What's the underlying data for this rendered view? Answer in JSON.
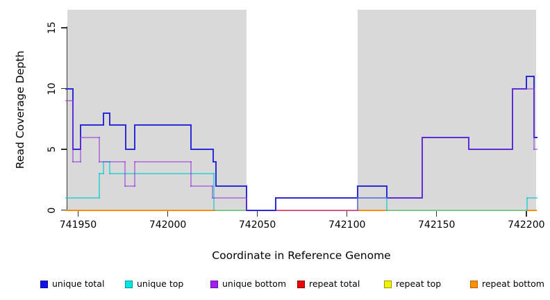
{
  "figure": {
    "xlabel": "Coordinate in Reference Genome",
    "ylabel": "Read Coverage Depth"
  },
  "legend": {
    "items": [
      {
        "label": "unique total",
        "fill": "#1111ee",
        "border": "#0b0b99"
      },
      {
        "label": "unique top",
        "fill": "#00e5e5",
        "border": "#009999"
      },
      {
        "label": "unique bottom",
        "fill": "#a020f0",
        "border": "#6a0dad"
      },
      {
        "label": "repeat total",
        "fill": "#ee0000",
        "border": "#8b0000"
      },
      {
        "label": "repeat top",
        "fill": "#f2f200",
        "border": "#999900"
      },
      {
        "label": "repeat bottom",
        "fill": "#ff9100",
        "border": "#b36200"
      }
    ]
  },
  "chart_data": {
    "type": "line",
    "step": true,
    "title": "",
    "xlabel": "Coordinate in Reference Genome",
    "ylabel": "Read Coverage Depth",
    "xlim": [
      741944,
      742205.5
    ],
    "ylim": [
      0,
      16.5
    ],
    "xticks": [
      741950,
      742000,
      742050,
      742100,
      742150,
      742200
    ],
    "yticks": [
      0,
      5,
      10,
      15
    ],
    "grid": false,
    "legend_position": "bottom",
    "plot_bg": "#d9d9d9",
    "uncovered_region": {
      "from": 742044,
      "to": 742106,
      "color": "#ffffff"
    },
    "axis_color": "#303030",
    "series": [
      {
        "name": "unique total",
        "color": "#2a2ad8",
        "end": 742205.7,
        "steps": [
          [
            741943.3,
            10
          ],
          [
            741947,
            5
          ],
          [
            741951.5,
            7
          ],
          [
            741964,
            8
          ],
          [
            741967.6,
            7
          ],
          [
            741976.7,
            5
          ],
          [
            741981.5,
            7
          ],
          [
            742012.8,
            5
          ],
          [
            742025.5,
            4
          ],
          [
            742026.8,
            2
          ],
          [
            742044,
            0
          ],
          [
            742060.2,
            1
          ],
          [
            742106,
            2
          ],
          [
            742122.3,
            1
          ],
          [
            742142,
            6
          ],
          [
            742168,
            5
          ],
          [
            742192.2,
            10
          ],
          [
            742200.1,
            11
          ],
          [
            742204.3,
            6
          ]
        ]
      },
      {
        "name": "unique top",
        "color": "rgba(0,205,205,0.6)",
        "end": 742205.7,
        "steps": [
          [
            741943.3,
            1
          ],
          [
            741961.9,
            3
          ],
          [
            741964,
            4
          ],
          [
            741967.6,
            3
          ],
          [
            742025.9,
            0
          ],
          [
            742106,
            1
          ],
          [
            742122.3,
            0
          ],
          [
            742200.5,
            1
          ]
        ]
      },
      {
        "name": "unique bottom",
        "color": "rgba(140,45,215,0.5)",
        "end": 742205.7,
        "steps": [
          [
            741943.3,
            9
          ],
          [
            741947,
            4
          ],
          [
            741951.5,
            6
          ],
          [
            741961.9,
            4
          ],
          [
            741976.3,
            2
          ],
          [
            741981.5,
            4
          ],
          [
            742012.8,
            2
          ],
          [
            742024.8,
            1
          ],
          [
            742044,
            0
          ],
          [
            742106,
            1
          ],
          [
            742142,
            6
          ],
          [
            742168,
            5
          ],
          [
            742192.2,
            10
          ],
          [
            742204.3,
            5
          ]
        ]
      },
      {
        "name": "repeat total",
        "color": "#e00000",
        "end": 742205.7,
        "steps": [
          [
            741943.3,
            0
          ]
        ]
      },
      {
        "name": "repeat top",
        "color": "#f0f000",
        "end": 742205.7,
        "steps": [
          [
            741943.3,
            0
          ]
        ]
      },
      {
        "name": "repeat bottom",
        "color": "#ff8c00",
        "end": 742205.7,
        "steps": [
          [
            741943.3,
            0
          ]
        ]
      }
    ],
    "baseline_segments": [
      {
        "from": 741943.3,
        "to": 742026.8,
        "color": "#ff8c00"
      },
      {
        "from": 742026.8,
        "to": 742044.0,
        "color": "#80c884"
      },
      {
        "from": 742044.0,
        "to": 742060.2,
        "color": "#2a2ad8"
      },
      {
        "from": 742060.2,
        "to": 742106.0,
        "color": "#d4587d"
      },
      {
        "from": 742106.0,
        "to": 742122.3,
        "color": "#ff8c00"
      },
      {
        "from": 742122.3,
        "to": 742199.5,
        "color": "#80c884"
      },
      {
        "from": 742199.5,
        "to": 742205.7,
        "color": "#ff8c00"
      }
    ]
  }
}
